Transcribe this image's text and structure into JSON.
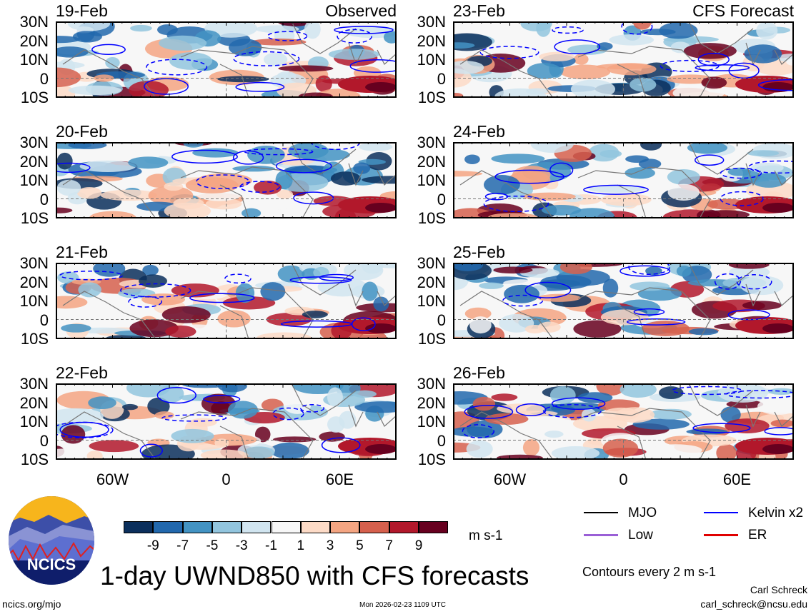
{
  "panels": [
    {
      "date": "19-Feb",
      "kind": "Observed"
    },
    {
      "date": "23-Feb",
      "kind": "CFS Forecast"
    },
    {
      "date": "20-Feb",
      "kind": ""
    },
    {
      "date": "24-Feb",
      "kind": ""
    },
    {
      "date": "21-Feb",
      "kind": ""
    },
    {
      "date": "25-Feb",
      "kind": ""
    },
    {
      "date": "22-Feb",
      "kind": ""
    },
    {
      "date": "26-Feb",
      "kind": ""
    }
  ],
  "lat_labels": [
    "30N",
    "20N",
    "10N",
    "0",
    "10S"
  ],
  "lon_labels": [
    "60W",
    "0",
    "60E"
  ],
  "colorbar": {
    "colors": [
      "#0b2f5c",
      "#2268ad",
      "#4393c3",
      "#92c5de",
      "#d1e5f0",
      "#f7f7f7",
      "#fddbc7",
      "#f4a582",
      "#d6604d",
      "#b2182b",
      "#67001f"
    ],
    "labels": [
      "-9",
      "-7",
      "-5",
      "-3",
      "-1",
      "1",
      "3",
      "5",
      "7",
      "9"
    ],
    "units": "m s-1"
  },
  "legend": [
    {
      "label": "MJO",
      "color": "#000000"
    },
    {
      "label": "Kelvin x2",
      "color": "#0000ff"
    },
    {
      "label": "Low",
      "color": "#9a5fd6"
    },
    {
      "label": "ER",
      "color": "#e00000"
    }
  ],
  "contours_note": "Contours every 2 m s-1",
  "title": "1-day UWND850 with CFS forecasts",
  "logo_text": "NCICS",
  "footer": {
    "url": "ncics.org/mjo",
    "timestamp": "Mon 2026-02-23 1109 UTC",
    "author": "Carl Schreck",
    "email": "carl_schreck@ncsu.edu"
  }
}
